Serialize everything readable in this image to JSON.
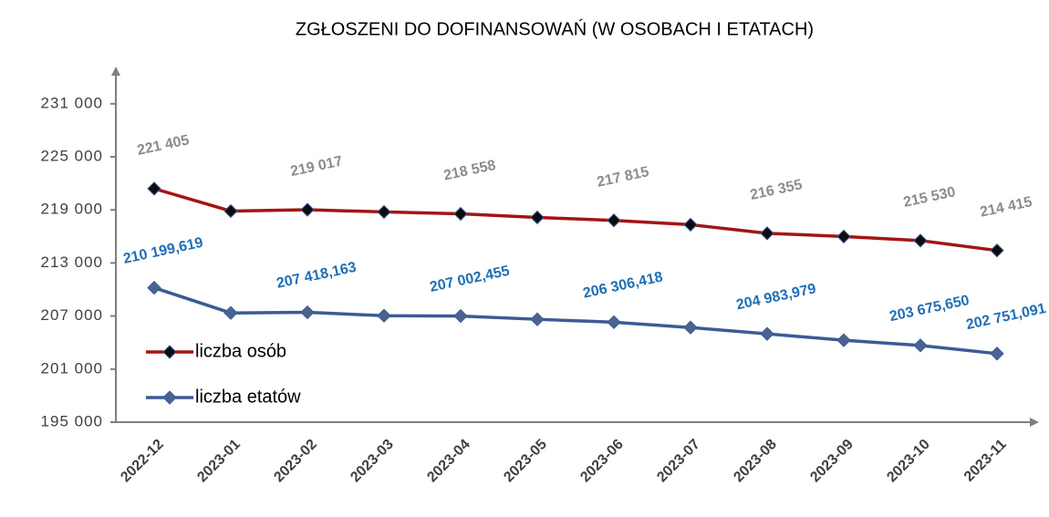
{
  "chart_data": {
    "type": "line",
    "title": "ZGŁOSZENI DO DOFINANSOWAŃ (W OSOBACH I ETATACH)",
    "categories": [
      "2022-12",
      "2023-01",
      "2023-02",
      "2023-03",
      "2023-04",
      "2023-05",
      "2023-06",
      "2023-07",
      "2023-08",
      "2023-09",
      "2023-10",
      "2023-11"
    ],
    "series": [
      {
        "name": "liczba osób",
        "color": "#a31515",
        "marker_color": "#0d0d0d",
        "label_color": "#8c8c8c",
        "values": [
          221405,
          218870,
          219017,
          218770,
          218558,
          218150,
          217815,
          217330,
          216355,
          215990,
          215530,
          214415
        ],
        "value_labels": [
          "221 405",
          null,
          "219 017",
          null,
          "218 558",
          null,
          "217 815",
          null,
          "216 355",
          null,
          "215 530",
          "214 415"
        ]
      },
      {
        "name": "liczba etatów",
        "color": "#3c5a96",
        "marker_color": "#4a6490",
        "label_color": "#1f6fb5",
        "values": [
          210199.619,
          207350,
          207418.163,
          207040,
          207002.455,
          206630,
          206306.418,
          205700,
          204983.979,
          204260,
          203675.65,
          202751.091
        ],
        "value_labels": [
          "210 199,619",
          null,
          "207 418,163",
          null,
          "207 002,455",
          null,
          "206 306,418",
          null,
          "204 983,979",
          null,
          "203 675,650",
          "202 751,091"
        ]
      }
    ],
    "ylim": [
      195000,
      235000
    ],
    "yticks": [
      {
        "value": 195000,
        "label": "195 000"
      },
      {
        "value": 201000,
        "label": "201 000"
      },
      {
        "value": 207000,
        "label": "207 000"
      },
      {
        "value": 213000,
        "label": "213 000"
      },
      {
        "value": 219000,
        "label": "219 000"
      },
      {
        "value": 225000,
        "label": "225 000"
      },
      {
        "value": 231000,
        "label": "231 000"
      }
    ],
    "legend": "left",
    "grid": false
  }
}
